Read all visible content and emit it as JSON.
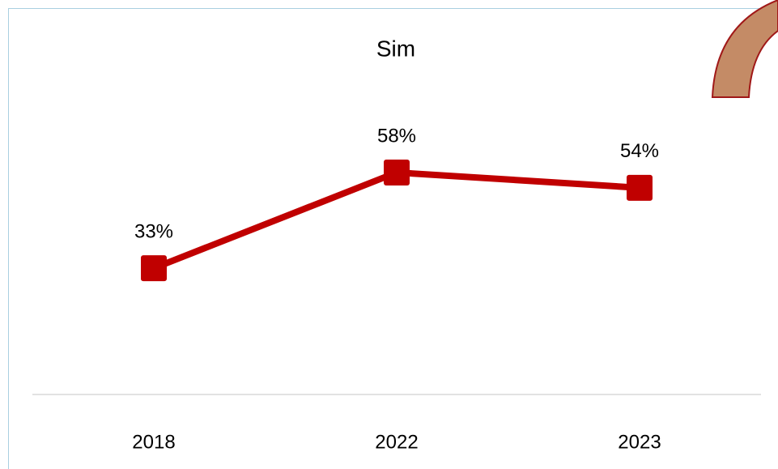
{
  "chart_data": {
    "type": "line",
    "title": "Sim",
    "categories": [
      "2018",
      "2022",
      "2023"
    ],
    "series": [
      {
        "name": "Sim",
        "color": "#c00000",
        "values": [
          33,
          58,
          54
        ],
        "value_labels": [
          "33%",
          "58%",
          "54%"
        ]
      }
    ],
    "ylim": [
      0,
      80
    ],
    "grid": false,
    "legend": false
  }
}
